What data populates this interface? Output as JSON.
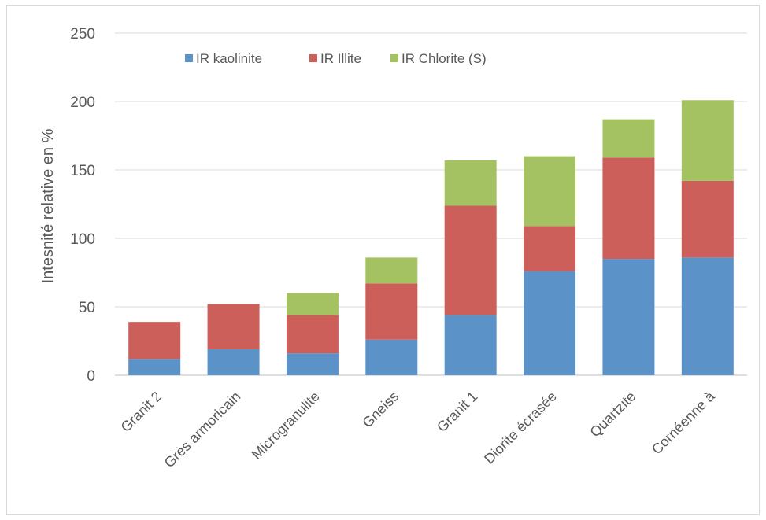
{
  "chart_data": {
    "type": "bar",
    "stacked": true,
    "categories": [
      "Granit 2",
      "Grès armoricain",
      "Microgranulite",
      "Gneiss",
      "Granit 1",
      "Diorite écrasée",
      "Quartzite",
      "Cornéenne à"
    ],
    "series": [
      {
        "name": "IR kaolinite",
        "color": "#5b93c8",
        "values": [
          12,
          19,
          16,
          26,
          44,
          76,
          85,
          86
        ]
      },
      {
        "name": "IR Illite",
        "color": "#cd5f5b",
        "values": [
          27,
          33,
          28,
          41,
          80,
          33,
          74,
          56
        ]
      },
      {
        "name": "IR Chlorite (S)",
        "color": "#a5c263",
        "values": [
          0,
          0,
          16,
          19,
          33,
          51,
          28,
          59
        ]
      }
    ],
    "title": "",
    "xlabel": "",
    "ylabel": "Intesnité relative en %",
    "ylim": [
      0,
      250
    ],
    "yticks": [
      0,
      50,
      100,
      150,
      200,
      250
    ],
    "grid": true,
    "legend_position": "top"
  }
}
